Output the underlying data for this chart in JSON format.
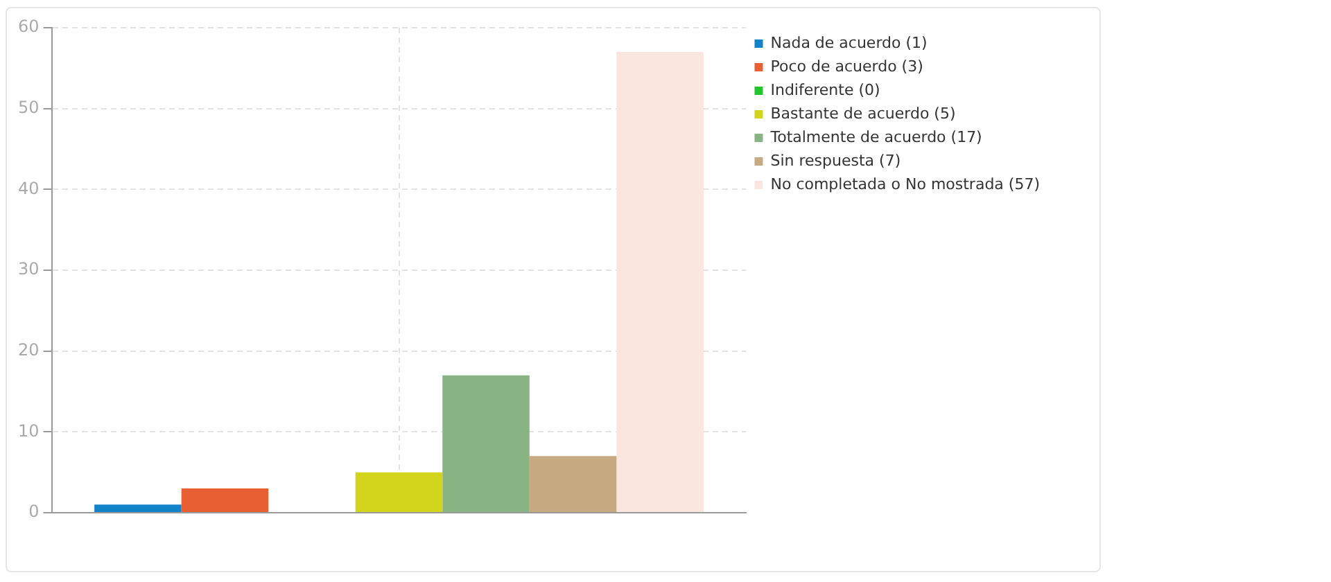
{
  "chart_data": {
    "type": "bar",
    "categories": [
      null
    ],
    "series": [
      {
        "name": "Nada de acuerdo (1)",
        "color": "#1283c9",
        "values": [
          1
        ]
      },
      {
        "name": "Poco de acuerdo (3)",
        "color": "#e75f33",
        "values": [
          3
        ]
      },
      {
        "name": "Indiferente (0)",
        "color": "#20c72c",
        "values": [
          0
        ]
      },
      {
        "name": "Bastante de acuerdo (5)",
        "color": "#d3d41c",
        "values": [
          5
        ]
      },
      {
        "name": "Totalmente de acuerdo (17)",
        "color": "#88b383",
        "values": [
          17
        ]
      },
      {
        "name": "Sin respuesta (7)",
        "color": "#c8aa82",
        "values": [
          7
        ]
      },
      {
        "name": "No completada o No mostrada (57)",
        "color": "#fae6de",
        "values": [
          57
        ]
      }
    ],
    "ylim": [
      0,
      60
    ],
    "yticks": [
      0,
      10,
      20,
      30,
      40,
      50,
      60
    ],
    "grid": true,
    "line_style": "dashed",
    "legend": "top right"
  }
}
